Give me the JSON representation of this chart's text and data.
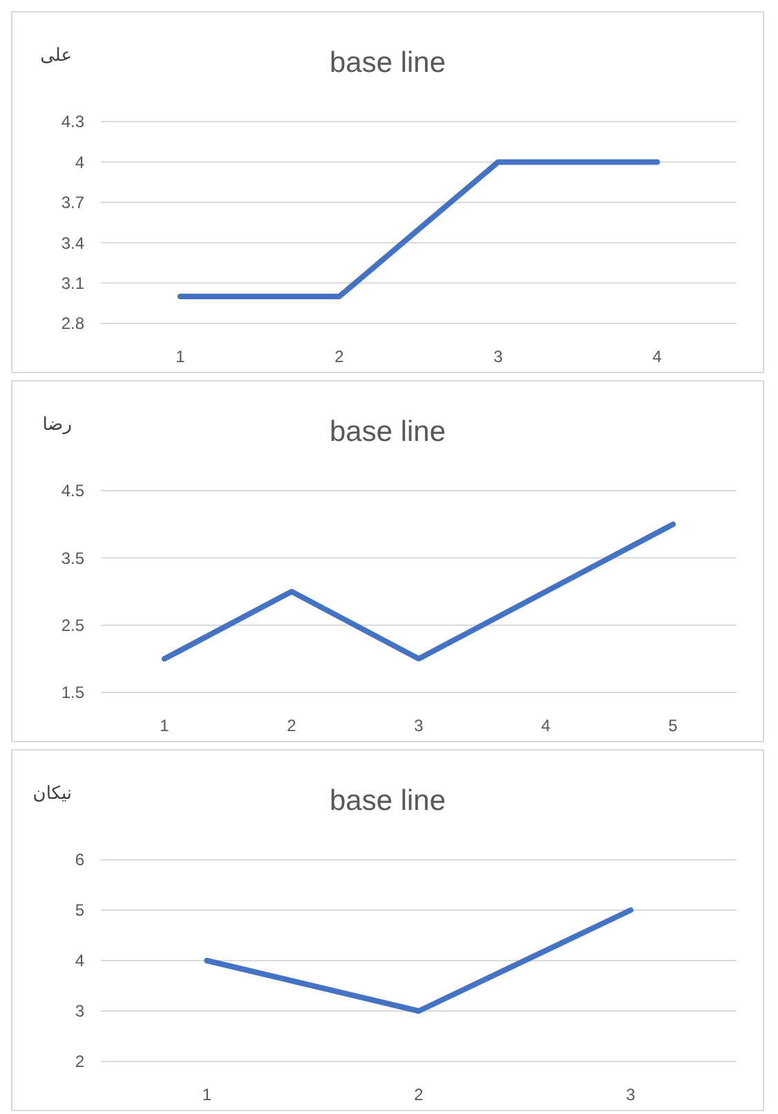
{
  "chart_data": [
    {
      "type": "line",
      "title": "base line",
      "ylabel": "علی",
      "categories": [
        "1",
        "2",
        "3",
        "4"
      ],
      "series": [
        {
          "color": "#4472c4",
          "values": [
            3,
            3,
            4,
            4
          ]
        }
      ],
      "ylim": [
        2.8,
        4.3
      ],
      "yticks": [
        2.8,
        3.1,
        3.4,
        3.7,
        4,
        4.3
      ],
      "grid": "y"
    },
    {
      "type": "line",
      "title": "base line",
      "ylabel": "رضا",
      "categories": [
        "1",
        "2",
        "3",
        "4",
        "5"
      ],
      "series": [
        {
          "color": "#4472c4",
          "values": [
            2,
            3,
            2,
            3,
            4
          ]
        }
      ],
      "ylim": [
        1.5,
        4.5
      ],
      "yticks": [
        1.5,
        2.5,
        3.5,
        4.5
      ],
      "grid": "y"
    },
    {
      "type": "line",
      "title": "base line",
      "ylabel": "نیکان",
      "categories": [
        "1",
        "2",
        "3"
      ],
      "series": [
        {
          "color": "#4472c4",
          "values": [
            4,
            3,
            5
          ]
        }
      ],
      "ylim": [
        2,
        6
      ],
      "yticks": [
        2,
        3,
        4,
        5,
        6
      ],
      "grid": "y"
    }
  ]
}
